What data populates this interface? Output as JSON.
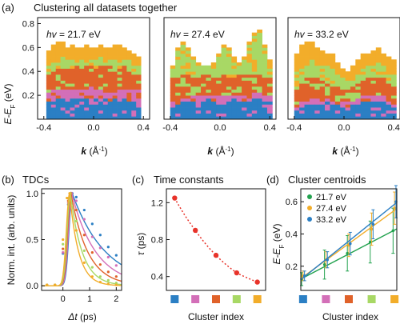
{
  "figure": {
    "panel_a": {
      "letter": "(a)",
      "title": "Clustering all datasets together",
      "subpanels": [
        {
          "hv_prefix": "hv",
          "hv_text": " = 21.7 eV"
        },
        {
          "hv_prefix": "hv",
          "hv_text": " = 27.4 eV"
        },
        {
          "hv_prefix": "hv",
          "hv_text": " = 33.2 eV"
        }
      ],
      "ylabel": "E-E",
      "ylabel_sub": "F",
      "ylabel_unit": " (eV)",
      "xlabel": "k",
      "xlabel_unit": " (Å",
      "xlabel_sup": "-1",
      "xlabel_close": ")"
    },
    "panel_b": {
      "letter": "(b)",
      "title": "TDCs",
      "ylabel": "Norm. int. (arb. units)",
      "xlabel": "Δt",
      "xlabel_unit": " (ps)"
    },
    "panel_c": {
      "letter": "(c)",
      "title": "Time constants",
      "ylabel": "τ",
      "ylabel_unit": " (ps)",
      "xlabel": "Cluster index"
    },
    "panel_d": {
      "letter": "(d)",
      "title": "Cluster centroids",
      "ylabel": "E-E",
      "ylabel_sub": "F",
      "ylabel_unit": " (eV)",
      "xlabel": "Cluster index"
    }
  },
  "colors": {
    "cluster": [
      "#2b7fc4",
      "#d36fb8",
      "#e0622a",
      "#a8d865",
      "#f2ad2a"
    ],
    "tdc": [
      "#2b7fc4",
      "#d36fb8",
      "#e0622a",
      "#a8d865",
      "#f2ad2a"
    ],
    "tau": "#e8332a",
    "hv": [
      "#23a24f",
      "#f2ad2a",
      "#2b7fc4"
    ]
  },
  "chart_data": [
    {
      "id": "a1",
      "type": "heatmap",
      "title": "hv = 21.7 eV",
      "xlabel": "k (Å-1)",
      "ylabel": "E-EF (eV)",
      "xlim": [
        -0.45,
        0.45
      ],
      "ylim": [
        0,
        0.85
      ],
      "xticks": [
        -0.4,
        0.0,
        0.4
      ],
      "yticks": [
        0.2,
        0.4,
        0.6,
        0.8
      ],
      "data_extent": [
        -0.38,
        0.38
      ],
      "boundaries": [
        [
          0.16,
          0.16,
          0.18,
          0.17,
          0.17,
          0.18,
          0.17,
          0.18,
          0.17,
          0.16,
          0.17,
          0.18,
          0.17,
          0.16,
          0.17,
          0.18,
          0.17,
          0.16,
          0.16,
          0.17
        ],
        [
          0.23,
          0.24,
          0.25,
          0.24,
          0.26,
          0.25,
          0.26,
          0.25,
          0.26,
          0.27,
          0.25,
          0.26,
          0.26,
          0.25,
          0.26,
          0.25,
          0.24,
          0.26,
          0.25,
          0.24
        ],
        [
          0.38,
          0.4,
          0.42,
          0.44,
          0.45,
          0.43,
          0.44,
          0.46,
          0.44,
          0.45,
          0.43,
          0.44,
          0.45,
          0.46,
          0.44,
          0.43,
          0.44,
          0.42,
          0.4,
          0.38
        ],
        [
          0.45,
          0.47,
          0.5,
          0.52,
          0.51,
          0.5,
          0.49,
          0.5,
          0.5,
          0.49,
          0.5,
          0.52,
          0.51,
          0.49,
          0.5,
          0.5,
          0.51,
          0.49,
          0.46,
          0.45
        ],
        [
          0.58,
          0.62,
          0.66,
          0.64,
          0.6,
          0.62,
          0.6,
          0.61,
          0.62,
          0.6,
          0.59,
          0.62,
          0.61,
          0.6,
          0.62,
          0.63,
          0.6,
          0.58,
          0.55,
          0.52
        ]
      ]
    },
    {
      "id": "a2",
      "type": "heatmap",
      "title": "hv = 27.4 eV",
      "xlabel": "k (Å-1)",
      "xlim": [
        -0.45,
        0.45
      ],
      "ylim": [
        0,
        0.85
      ],
      "xticks": [
        -0.4,
        0.0,
        0.4
      ],
      "data_extent": [
        -0.4,
        0.42
      ],
      "boundaries": [
        [
          0.1,
          0.12,
          0.14,
          0.14,
          0.15,
          0.16,
          0.16,
          0.17,
          0.16,
          0.15,
          0.15,
          0.16,
          0.17,
          0.16,
          0.15,
          0.16,
          0.17,
          0.18,
          0.16,
          0.15
        ],
        [
          0.14,
          0.16,
          0.18,
          0.18,
          0.19,
          0.2,
          0.2,
          0.21,
          0.2,
          0.19,
          0.2,
          0.2,
          0.21,
          0.21,
          0.2,
          0.21,
          0.22,
          0.22,
          0.2,
          0.19
        ],
        [
          0.34,
          0.36,
          0.38,
          0.37,
          0.36,
          0.36,
          0.37,
          0.37,
          0.36,
          0.36,
          0.37,
          0.36,
          0.36,
          0.37,
          0.37,
          0.38,
          0.38,
          0.37,
          0.36,
          0.35
        ],
        [
          0.42,
          0.58,
          0.62,
          0.58,
          0.5,
          0.45,
          0.44,
          0.44,
          0.46,
          0.52,
          0.6,
          0.58,
          0.5,
          0.46,
          0.5,
          0.62,
          0.7,
          0.72,
          0.6,
          0.48
        ],
        [
          0.44,
          0.6,
          0.64,
          0.6,
          0.52,
          0.47,
          0.46,
          0.46,
          0.48,
          0.54,
          0.62,
          0.6,
          0.52,
          0.48,
          0.52,
          0.64,
          0.72,
          0.74,
          0.62,
          0.5
        ]
      ]
    },
    {
      "id": "a3",
      "type": "heatmap",
      "title": "hv = 33.2 eV",
      "xlabel": "k (Å-1)",
      "xlim": [
        -0.45,
        0.45
      ],
      "ylim": [
        0,
        0.85
      ],
      "xticks": [
        -0.4,
        0.0,
        0.4
      ],
      "data_extent": [
        -0.4,
        0.42
      ],
      "boundaries": [
        [
          0.08,
          0.1,
          0.12,
          0.12,
          0.13,
          0.14,
          0.14,
          0.13,
          0.12,
          0.11,
          0.1,
          0.12,
          0.13,
          0.14,
          0.14,
          0.15,
          0.15,
          0.14,
          0.12,
          0.1
        ],
        [
          0.12,
          0.14,
          0.16,
          0.17,
          0.18,
          0.19,
          0.18,
          0.17,
          0.16,
          0.15,
          0.14,
          0.16,
          0.18,
          0.19,
          0.19,
          0.2,
          0.2,
          0.19,
          0.17,
          0.15
        ],
        [
          0.26,
          0.3,
          0.34,
          0.36,
          0.34,
          0.32,
          0.31,
          0.3,
          0.28,
          0.26,
          0.24,
          0.28,
          0.32,
          0.33,
          0.34,
          0.36,
          0.36,
          0.34,
          0.3,
          0.28
        ],
        [
          0.4,
          0.42,
          0.46,
          0.5,
          0.48,
          0.46,
          0.44,
          0.42,
          0.38,
          0.34,
          0.32,
          0.36,
          0.4,
          0.42,
          0.44,
          0.46,
          0.48,
          0.44,
          0.4,
          0.38
        ],
        [
          0.56,
          0.62,
          0.66,
          0.64,
          0.6,
          0.58,
          0.56,
          0.54,
          0.48,
          0.42,
          0.4,
          0.44,
          0.5,
          0.54,
          0.56,
          0.58,
          0.6,
          0.56,
          0.52,
          0.5
        ]
      ]
    },
    {
      "id": "b",
      "type": "line",
      "title": "TDCs",
      "xlabel": "Δt (ps)",
      "ylabel": "Norm. int. (arb. units)",
      "xlim": [
        -0.8,
        2.2
      ],
      "ylim": [
        -0.05,
        1.05
      ],
      "xticks": [
        0,
        1,
        2
      ],
      "yticks": [
        0.0,
        0.5,
        1.0
      ],
      "series": [
        {
          "peak": 0.35,
          "tau": 1.25,
          "points": [
            [
              -0.6,
              0.01
            ],
            [
              -0.3,
              0.01
            ],
            [
              0.0,
              0.35
            ],
            [
              0.2,
              0.88
            ],
            [
              0.35,
              1.0
            ],
            [
              0.5,
              0.96
            ],
            [
              0.8,
              0.82
            ],
            [
              1.1,
              0.67
            ],
            [
              1.4,
              0.55
            ],
            [
              1.7,
              0.42
            ],
            [
              2.0,
              0.33
            ]
          ]
        },
        {
          "peak": 0.33,
          "tau": 0.9,
          "points": [
            [
              -0.6,
              0.01
            ],
            [
              -0.3,
              0.01
            ],
            [
              0.0,
              0.36
            ],
            [
              0.2,
              0.9
            ],
            [
              0.33,
              1.0
            ],
            [
              0.5,
              0.92
            ],
            [
              0.8,
              0.72
            ],
            [
              1.1,
              0.53
            ],
            [
              1.4,
              0.41
            ],
            [
              1.7,
              0.31
            ],
            [
              2.0,
              0.22
            ]
          ]
        },
        {
          "peak": 0.3,
          "tau": 0.63,
          "points": [
            [
              -0.6,
              0.01
            ],
            [
              -0.3,
              0.01
            ],
            [
              0.0,
              0.4
            ],
            [
              0.2,
              0.92
            ],
            [
              0.3,
              1.0
            ],
            [
              0.5,
              0.82
            ],
            [
              0.8,
              0.55
            ],
            [
              1.1,
              0.36
            ],
            [
              1.4,
              0.23
            ],
            [
              1.7,
              0.15
            ],
            [
              2.0,
              0.1
            ]
          ]
        },
        {
          "peak": 0.28,
          "tau": 0.44,
          "points": [
            [
              -0.6,
              0.01
            ],
            [
              -0.3,
              0.01
            ],
            [
              0.0,
              0.45
            ],
            [
              0.2,
              0.95
            ],
            [
              0.28,
              1.0
            ],
            [
              0.5,
              0.7
            ],
            [
              0.8,
              0.38
            ],
            [
              1.1,
              0.2
            ],
            [
              1.4,
              0.1
            ],
            [
              1.7,
              0.06
            ],
            [
              2.0,
              0.03
            ]
          ]
        },
        {
          "peak": 0.25,
          "tau": 0.34,
          "points": [
            [
              -0.6,
              0.01
            ],
            [
              -0.3,
              0.01
            ],
            [
              0.0,
              0.5
            ],
            [
              0.15,
              0.95
            ],
            [
              0.25,
              1.0
            ],
            [
              0.5,
              0.6
            ],
            [
              0.8,
              0.25
            ],
            [
              1.1,
              0.1
            ],
            [
              1.4,
              0.04
            ],
            [
              1.7,
              0.02
            ],
            [
              2.0,
              0.01
            ]
          ]
        }
      ]
    },
    {
      "id": "c",
      "type": "scatter",
      "title": "Time constants",
      "xlabel": "Cluster index",
      "ylabel": "τ (ps)",
      "x": [
        1,
        2,
        3,
        4,
        5
      ],
      "values": [
        1.25,
        0.9,
        0.63,
        0.44,
        0.34
      ],
      "ylim": [
        0.25,
        1.35
      ],
      "yticks": [
        0.4,
        0.8,
        1.2
      ]
    },
    {
      "id": "d",
      "type": "line",
      "title": "Cluster centroids",
      "xlabel": "Cluster index",
      "ylabel": "E-EF (eV)",
      "x": [
        1,
        2,
        3,
        4,
        5
      ],
      "ylim": [
        0.05,
        0.68
      ],
      "yticks": [
        0.2,
        0.4,
        0.6
      ],
      "series": [
        {
          "name": "21.7 eV",
          "values": [
            0.12,
            0.21,
            0.28,
            0.35,
            0.42
          ],
          "err": [
            0.04,
            0.09,
            0.11,
            0.13,
            0.14
          ]
        },
        {
          "name": "27.4 eV",
          "values": [
            0.14,
            0.24,
            0.33,
            0.43,
            0.56
          ],
          "err": [
            0.03,
            0.05,
            0.07,
            0.1,
            0.1
          ]
        },
        {
          "name": "33.2 eV",
          "values": [
            0.14,
            0.24,
            0.34,
            0.46,
            0.6
          ],
          "err": [
            0.03,
            0.05,
            0.07,
            0.09,
            0.1
          ]
        }
      ]
    }
  ]
}
